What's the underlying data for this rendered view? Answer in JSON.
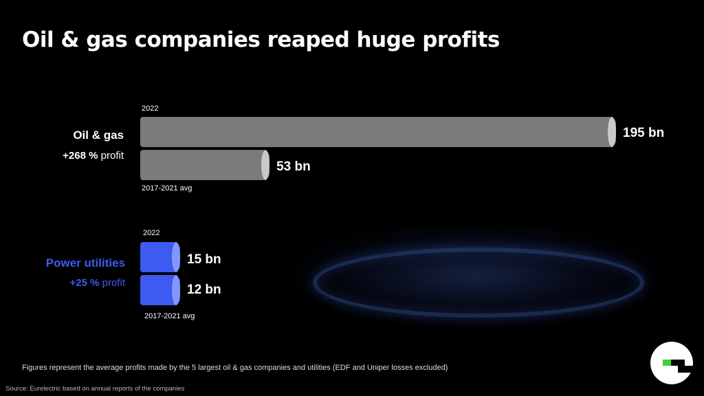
{
  "title": "Oil & gas companies reaped huge profits",
  "groups": {
    "oil": {
      "label": "Oil & gas",
      "change_value": "+268 %",
      "change_suffix": "profit",
      "top_caption": "2022",
      "bottom_caption": "2017-2021 avg",
      "value_2022_label": "195 bn",
      "value_avg_label": "53 bn"
    },
    "power": {
      "label": "Power utilities",
      "change_value": "+25 %",
      "change_suffix": "profit",
      "top_caption": "2022",
      "bottom_caption": "2017-2021 avg",
      "value_2022_label": "15 bn",
      "value_avg_label": "12 bn"
    }
  },
  "footnote": "Figures represent the average profits made by the 5 largest oil & gas companies and utilities (EDF and Uniper losses excluded)",
  "source": "Source: Eurelectric based on annual reports of the companies",
  "colors": {
    "oil_bar": "#7b7b7b",
    "power_bar": "#3d5af1",
    "power_label": "#3d5af1",
    "logo_accent": "#3cd23c"
  },
  "icons": {
    "logo": "eurelectric-logo"
  },
  "chart_data": {
    "type": "bar",
    "orientation": "horizontal",
    "unit": "bn",
    "categories": [
      "Oil & gas",
      "Power utilities"
    ],
    "series": [
      {
        "name": "2022",
        "values": [
          195,
          15
        ]
      },
      {
        "name": "2017-2021 avg",
        "values": [
          53,
          12
        ]
      }
    ],
    "change_labels": [
      "+268 %",
      "+25 %"
    ],
    "title": "Oil & gas companies reaped huge profits",
    "xlabel": "",
    "ylabel": "",
    "xlim": [
      0,
      195
    ],
    "grid": false,
    "legend": "none"
  }
}
